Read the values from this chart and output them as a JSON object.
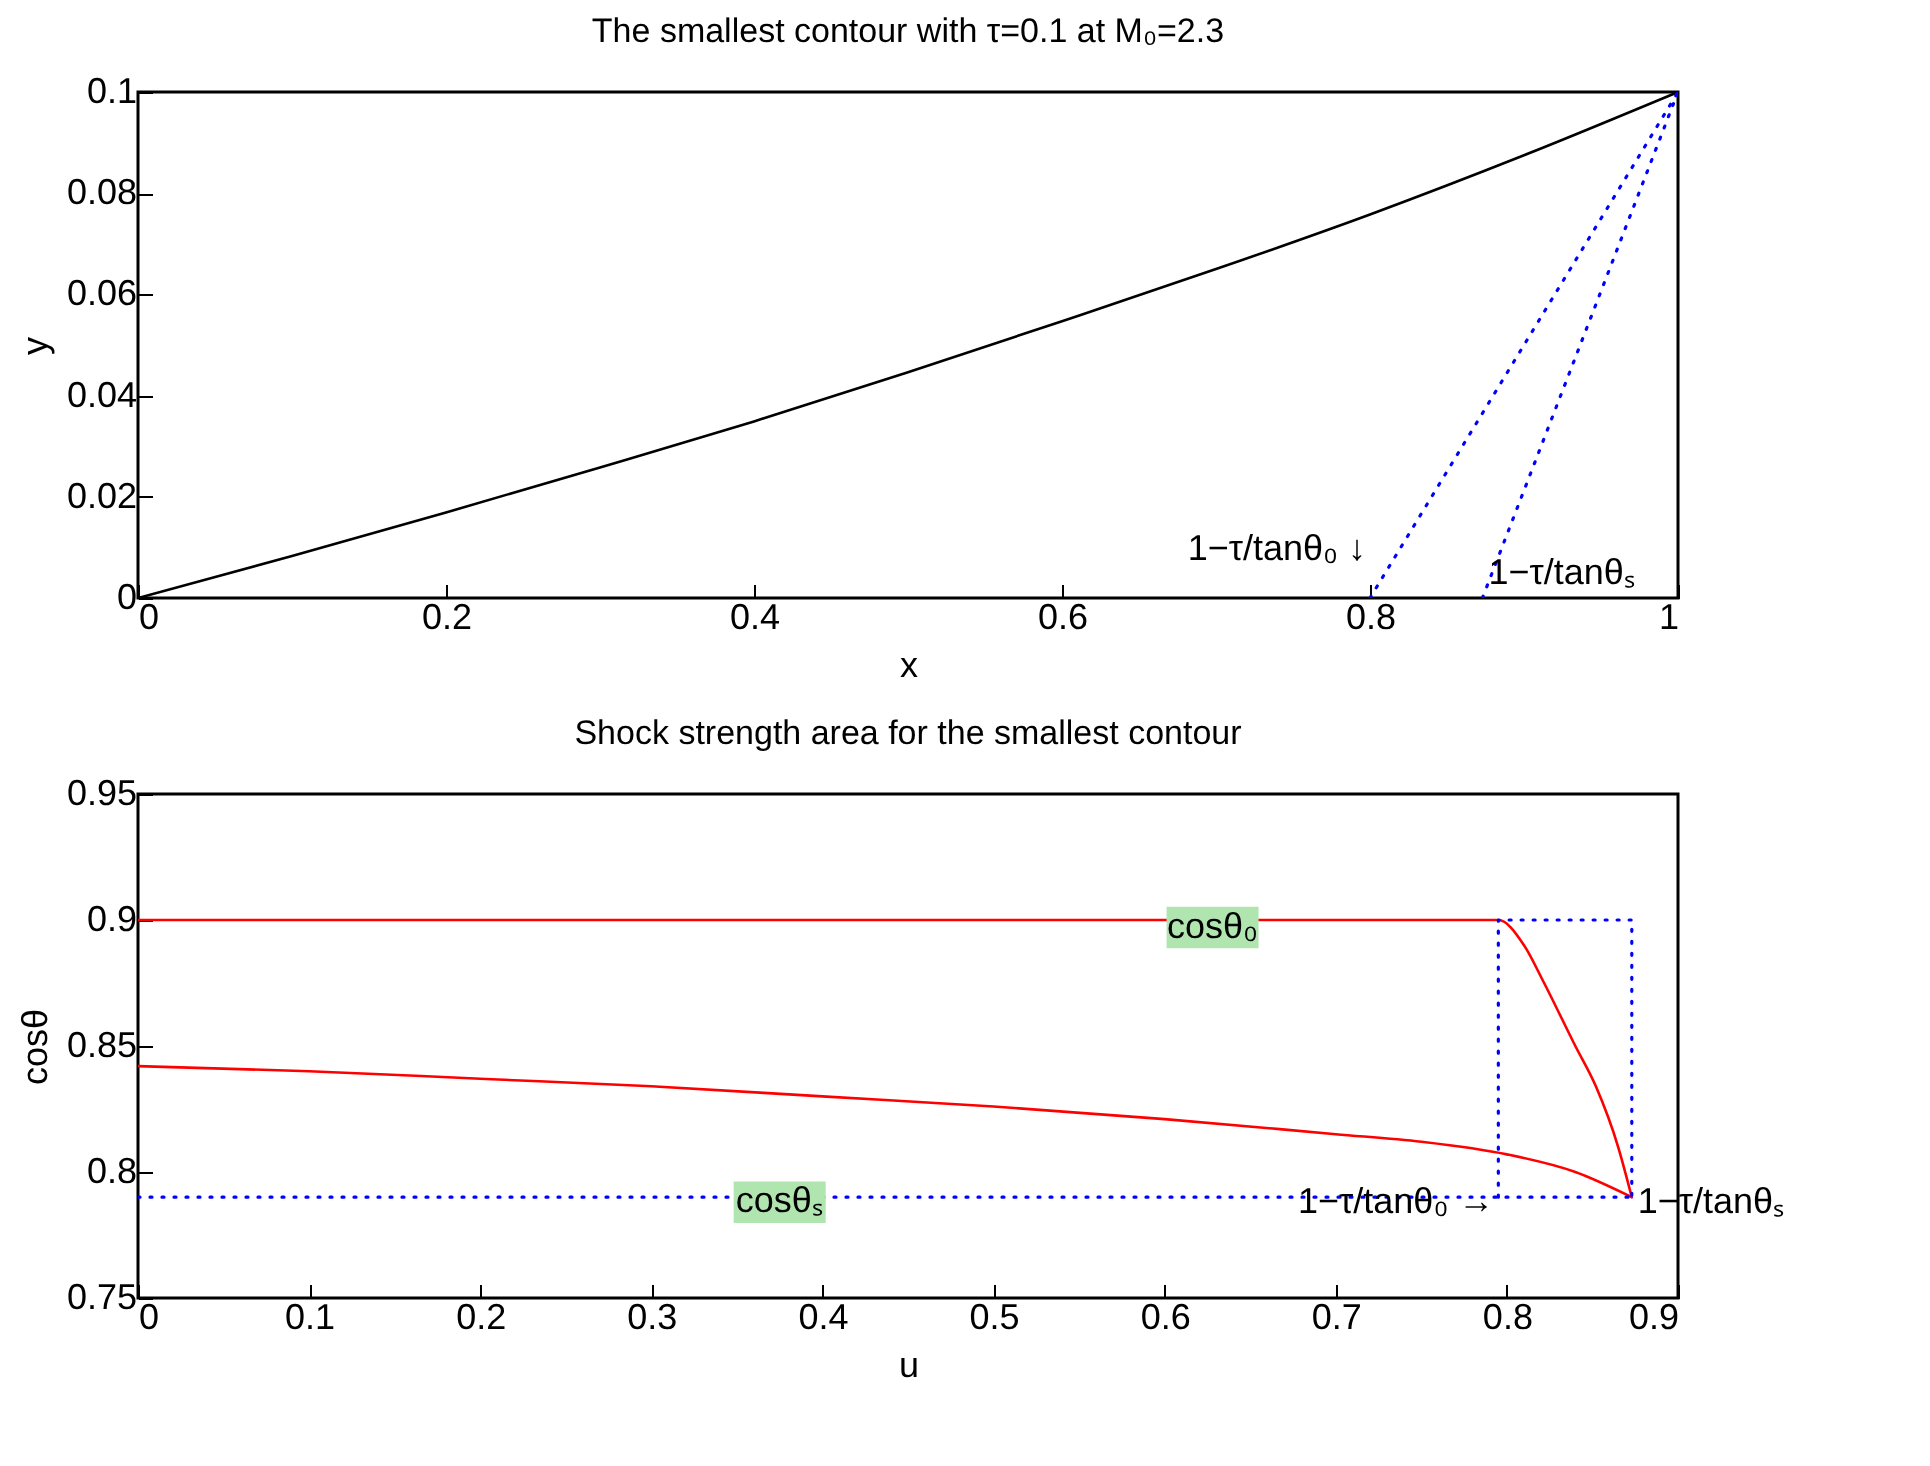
{
  "chart_data": [
    {
      "type": "line",
      "title": "The smallest contour with τ=0.1 at M₀=2.3",
      "xlabel": "x",
      "ylabel": "y",
      "xlim": [
        0,
        1
      ],
      "ylim": [
        0,
        0.1
      ],
      "xticks": [
        0,
        0.2,
        0.4,
        0.6,
        0.8,
        1
      ],
      "yticks": [
        0,
        0.02,
        0.04,
        0.06,
        0.08,
        0.1
      ],
      "grid": false,
      "marker": "none",
      "series": [
        {
          "color": "#000000",
          "line_style": "solid",
          "x": [
            0,
            0.1,
            0.2,
            0.3,
            0.4,
            0.5,
            0.6,
            0.7,
            0.8,
            0.9,
            1
          ],
          "values": [
            0,
            0.0083,
            0.0169,
            0.0258,
            0.0349,
            0.0446,
            0.0547,
            0.065,
            0.0758,
            0.0875,
            0.1
          ]
        },
        {
          "color": "#0000ff",
          "line_style": "dotted",
          "x": [
            0.8,
            1
          ],
          "values": [
            0,
            0.1
          ]
        },
        {
          "color": "#0000ff",
          "line_style": "dotted",
          "x": [
            0.873,
            1
          ],
          "values": [
            0,
            0.1
          ]
        }
      ],
      "annotations": [
        {
          "text": "1−τ/tanθ₀ ↓",
          "x": 0.8,
          "y": 0
        },
        {
          "text": "1−τ/tanθₛ",
          "x": 0.873,
          "y": 0
        }
      ]
    },
    {
      "type": "line",
      "title": "Shock strength area for the smallest contour",
      "xlabel": "u",
      "ylabel": "cosθ",
      "xlim": [
        0,
        0.9
      ],
      "ylim": [
        0.75,
        0.95
      ],
      "xticks": [
        0,
        0.1,
        0.2,
        0.3,
        0.4,
        0.5,
        0.6,
        0.7,
        0.8,
        0.9
      ],
      "yticks": [
        0.75,
        0.8,
        0.85,
        0.9,
        0.95
      ],
      "grid": false,
      "marker": "none",
      "series": [
        {
          "color": "#ff0000",
          "line_style": "solid",
          "x": [
            0,
            0.795,
            0.81,
            0.821,
            0.84,
            0.852,
            0.865,
            0.873
          ],
          "values": [
            0.9,
            0.9,
            0.89,
            0.876,
            0.85,
            0.834,
            0.81,
            0.79
          ]
        },
        {
          "color": "#ff0000",
          "line_style": "solid",
          "x": [
            0,
            0.1,
            0.2,
            0.3,
            0.4,
            0.5,
            0.6,
            0.7,
            0.75,
            0.8,
            0.84,
            0.873
          ],
          "values": [
            0.842,
            0.84,
            0.837,
            0.834,
            0.83,
            0.826,
            0.821,
            0.815,
            0.812,
            0.807,
            0.8,
            0.79
          ]
        },
        {
          "color": "#0000ff",
          "line_style": "dotted",
          "x": [
            0,
            0.873
          ],
          "values": [
            0.79,
            0.79
          ]
        },
        {
          "color": "#0000ff",
          "line_style": "dotted",
          "x": [
            0.795,
            0.795,
            0.873,
            0.873
          ],
          "values": [
            0.79,
            0.9,
            0.9,
            0.79
          ]
        }
      ],
      "annotations": [
        {
          "text": "cosθ₀",
          "x": 0.628,
          "y": 0.897
        },
        {
          "text": "cosθₛ",
          "x": 0.375,
          "y": 0.788
        },
        {
          "text": "1−τ/tanθ₀ →",
          "x": 0.795,
          "y": 0.79
        },
        {
          "text": "1−τ/tanθₛ",
          "x": 0.873,
          "y": 0.79
        }
      ]
    }
  ]
}
